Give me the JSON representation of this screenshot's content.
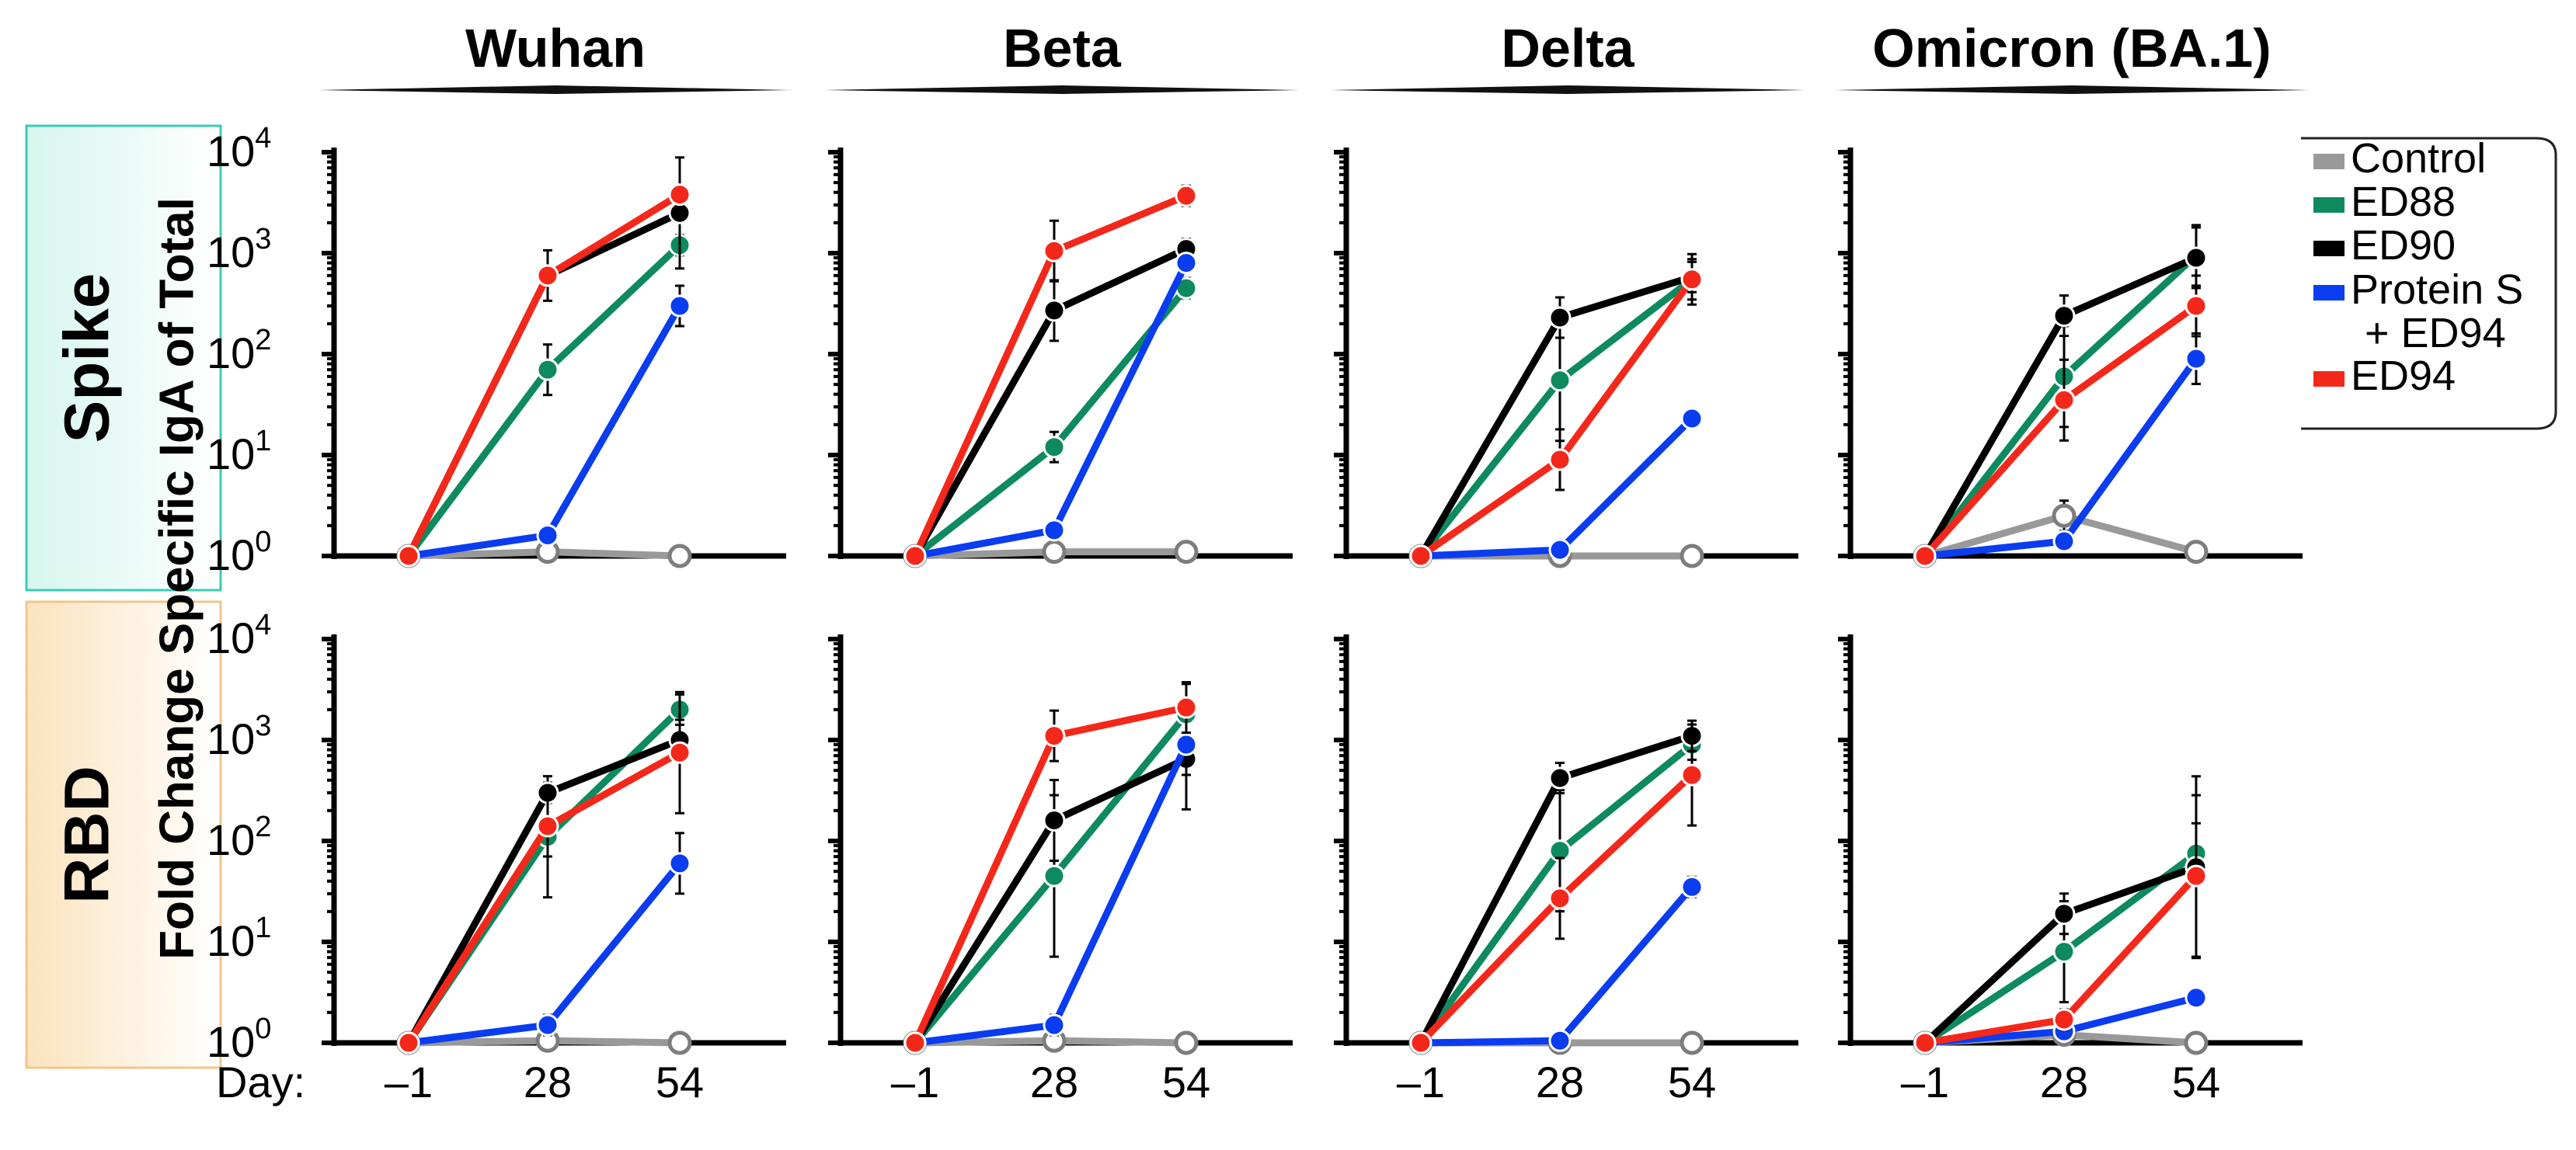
{
  "chart_data": {
    "type": "line",
    "y_axis_label": "Fold Change Specific IgA of Total",
    "y_scale": "log10",
    "ylim": [
      1,
      10000
    ],
    "y_tick_labels": [
      {
        "base": "10",
        "exp": "0"
      },
      {
        "base": "10",
        "exp": "1"
      },
      {
        "base": "10",
        "exp": "2"
      },
      {
        "base": "10",
        "exp": "3"
      },
      {
        "base": "10",
        "exp": "4"
      }
    ],
    "x_axis_prefix": "Day:",
    "x_categories": [
      "–1",
      "28",
      "54"
    ],
    "columns": [
      "Wuhan",
      "Beta",
      "Delta",
      "Omicron (BA.1)"
    ],
    "rows": [
      "Spike",
      "RBD"
    ],
    "legend": [
      {
        "label": "Control",
        "color": "#999999"
      },
      {
        "label": "ED88",
        "color": "#0e8a5f"
      },
      {
        "label": "ED90",
        "color": "#000000"
      },
      {
        "label": "Protein S",
        "label_line2": "+ ED94",
        "color": "#0a3cf0"
      },
      {
        "label": "ED94",
        "color": "#f4281a"
      }
    ],
    "panels": [
      {
        "row": "Spike",
        "variant": "Wuhan",
        "series": [
          {
            "name": "Control",
            "values": [
              1,
              1.1,
              1
            ],
            "err": [
              0,
              0.05,
              0
            ]
          },
          {
            "name": "ED88",
            "values": [
              1,
              70,
              1200
            ],
            "err": [
              0,
              0.25,
              0.1
            ]
          },
          {
            "name": "ED90",
            "values": [
              1,
              600,
              2500
            ],
            "err": [
              0,
              0.25,
              0.55
            ]
          },
          {
            "name": "Protein S + ED94",
            "values": [
              1,
              1.6,
              300
            ],
            "err": [
              0,
              0.05,
              0.2
            ]
          },
          {
            "name": "ED94",
            "values": [
              1,
              600,
              3800
            ],
            "err": [
              0,
              0.05,
              0.05
            ]
          }
        ]
      },
      {
        "row": "Spike",
        "variant": "Beta",
        "series": [
          {
            "name": "Control",
            "values": [
              1,
              1.1,
              1.1
            ],
            "err": [
              0,
              0.05,
              0
            ]
          },
          {
            "name": "ED88",
            "values": [
              1,
              12,
              450
            ],
            "err": [
              0,
              0.15,
              0.1
            ]
          },
          {
            "name": "ED90",
            "values": [
              1,
              270,
              1100
            ],
            "err": [
              0,
              0.3,
              0.1
            ]
          },
          {
            "name": "Protein S + ED94",
            "values": [
              1,
              1.8,
              800
            ],
            "err": [
              0,
              0.05,
              0.05
            ]
          },
          {
            "name": "ED94",
            "values": [
              1,
              1050,
              3700
            ],
            "err": [
              0,
              0.3,
              0.1
            ]
          }
        ]
      },
      {
        "row": "Spike",
        "variant": "Delta",
        "series": [
          {
            "name": "Control",
            "values": [
              1,
              1,
              1
            ],
            "err": [
              0,
              0,
              0
            ]
          },
          {
            "name": "ED88",
            "values": [
              1,
              55,
              550
            ],
            "err": [
              0,
              0.6,
              0.2
            ]
          },
          {
            "name": "ED90",
            "values": [
              1,
              230,
              580
            ],
            "err": [
              0,
              0.2,
              0.15
            ]
          },
          {
            "name": "Protein S + ED94",
            "values": [
              1,
              1.15,
              23
            ],
            "err": [
              0,
              0.05,
              0.08
            ]
          },
          {
            "name": "ED94",
            "values": [
              1,
              9,
              550
            ],
            "err": [
              0,
              0.3,
              0.25
            ]
          }
        ]
      },
      {
        "row": "Spike",
        "variant": "Omicron (BA.1)",
        "series": [
          {
            "name": "Control",
            "values": [
              1,
              2.5,
              1.1
            ],
            "err": [
              0,
              0.15,
              0
            ]
          },
          {
            "name": "ED88",
            "values": [
              1,
              60,
              950
            ],
            "err": [
              0,
              0.5,
              0.3
            ]
          },
          {
            "name": "ED90",
            "values": [
              1,
              240,
              900
            ],
            "err": [
              0,
              0.2,
              0.3
            ]
          },
          {
            "name": "Protein S + ED94",
            "values": [
              1,
              1.4,
              90
            ],
            "err": [
              0,
              0.05,
              0.25
            ]
          },
          {
            "name": "ED94",
            "values": [
              1,
              35,
              300
            ],
            "err": [
              0,
              0.4,
              0.3
            ]
          }
        ]
      },
      {
        "row": "RBD",
        "variant": "Wuhan",
        "series": [
          {
            "name": "Control",
            "values": [
              1,
              1.05,
              1
            ],
            "err": [
              0,
              0.05,
              0
            ]
          },
          {
            "name": "ED88",
            "values": [
              1,
              110,
              2000
            ],
            "err": [
              0,
              0.6,
              0.15
            ]
          },
          {
            "name": "ED90",
            "values": [
              1,
              300,
              1000
            ],
            "err": [
              0,
              0.1,
              0.2
            ]
          },
          {
            "name": "Protein S + ED94",
            "values": [
              1,
              1.5,
              60
            ],
            "err": [
              0,
              0.1,
              0.3
            ]
          },
          {
            "name": "ED94",
            "values": [
              1,
              140,
              750
            ],
            "err": [
              0,
              0.3,
              0.6
            ]
          }
        ]
      },
      {
        "row": "RBD",
        "variant": "Beta",
        "series": [
          {
            "name": "Control",
            "values": [
              1,
              1.05,
              1
            ],
            "err": [
              0,
              0.05,
              0
            ]
          },
          {
            "name": "ED88",
            "values": [
              1,
              45,
              1800
            ],
            "err": [
              0,
              0.8,
              0.3
            ]
          },
          {
            "name": "ED90",
            "values": [
              1,
              160,
              650
            ],
            "err": [
              0,
              0.4,
              0.5
            ]
          },
          {
            "name": "Protein S + ED94",
            "values": [
              1,
              1.5,
              900
            ],
            "err": [
              0,
              0.1,
              0.3
            ]
          },
          {
            "name": "ED94",
            "values": [
              1,
              1100,
              2100
            ],
            "err": [
              0,
              0.25,
              0.25
            ]
          }
        ]
      },
      {
        "row": "RBD",
        "variant": "Delta",
        "series": [
          {
            "name": "Control",
            "values": [
              1,
              1,
              1
            ],
            "err": [
              0,
              0,
              0
            ]
          },
          {
            "name": "ED88",
            "values": [
              1,
              80,
              900
            ],
            "err": [
              0,
              0.6,
              0.15
            ]
          },
          {
            "name": "ED90",
            "values": [
              1,
              420,
              1100
            ],
            "err": [
              0,
              0.15,
              0.15
            ]
          },
          {
            "name": "Protein S + ED94",
            "values": [
              1,
              1.05,
              35
            ],
            "err": [
              0,
              0.05,
              0.1
            ]
          },
          {
            "name": "ED94",
            "values": [
              1,
              27,
              450
            ],
            "err": [
              0,
              0.4,
              0.5
            ]
          }
        ]
      },
      {
        "row": "RBD",
        "variant": "Omicron (BA.1)",
        "series": [
          {
            "name": "Control",
            "values": [
              1,
              1.2,
              1
            ],
            "err": [
              0,
              0.05,
              0
            ]
          },
          {
            "name": "ED88",
            "values": [
              1,
              8,
              75
            ],
            "err": [
              0,
              0.5,
              0.3
            ]
          },
          {
            "name": "ED90",
            "values": [
              1,
              19,
              55
            ],
            "err": [
              0,
              0.2,
              0.9
            ]
          },
          {
            "name": "Protein S + ED94",
            "values": [
              1,
              1.3,
              2.8
            ],
            "err": [
              0,
              0.05,
              0.08
            ]
          },
          {
            "name": "ED94",
            "values": [
              1,
              1.7,
              45
            ],
            "err": [
              0,
              0.1,
              0.8
            ]
          }
        ]
      }
    ]
  }
}
